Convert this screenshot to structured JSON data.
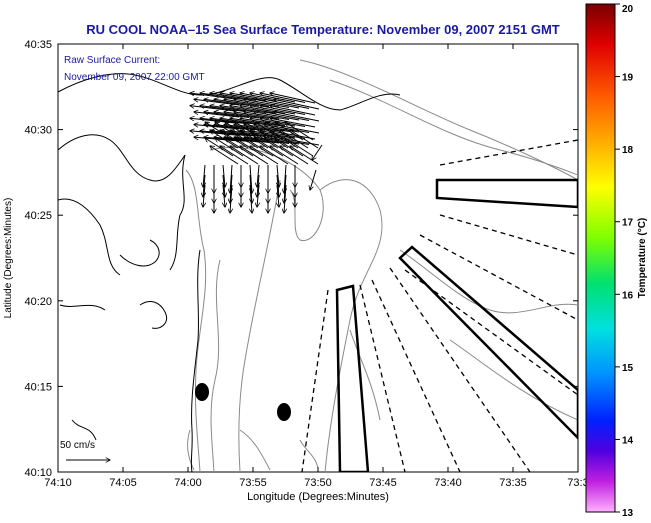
{
  "title": "RU COOL  NOAA–15  Sea Surface Temperature:  November 09, 2007 2151 GMT",
  "annotation": {
    "line1": "Raw Surface Current:",
    "line2": "November 09, 2007 22:00 GMT"
  },
  "scale_label": "50 cm/s",
  "colors": {
    "title": "#1a1aa0",
    "annotation": "#1a1aa0",
    "coast": "#000000",
    "contour": "#8a8a8a"
  },
  "colorbar": {
    "label": "Temperature (°C)",
    "min": 13,
    "max": 20,
    "ticks": [
      "20",
      "19",
      "18",
      "17",
      "16",
      "15",
      "14",
      "13"
    ]
  },
  "axes": {
    "xlabel": "Longitude (Degrees:Minutes)",
    "ylabel": "Latitude (Degrees:Minutes)",
    "x_ticks": [
      "74:10",
      "74:05",
      "74:00",
      "73:55",
      "73:50",
      "73:45",
      "73:40",
      "73:35",
      "73:3"
    ],
    "y_ticks": [
      "40:35",
      "40:30",
      "40:25",
      "40:20",
      "40:15",
      "40:10"
    ]
  }
}
